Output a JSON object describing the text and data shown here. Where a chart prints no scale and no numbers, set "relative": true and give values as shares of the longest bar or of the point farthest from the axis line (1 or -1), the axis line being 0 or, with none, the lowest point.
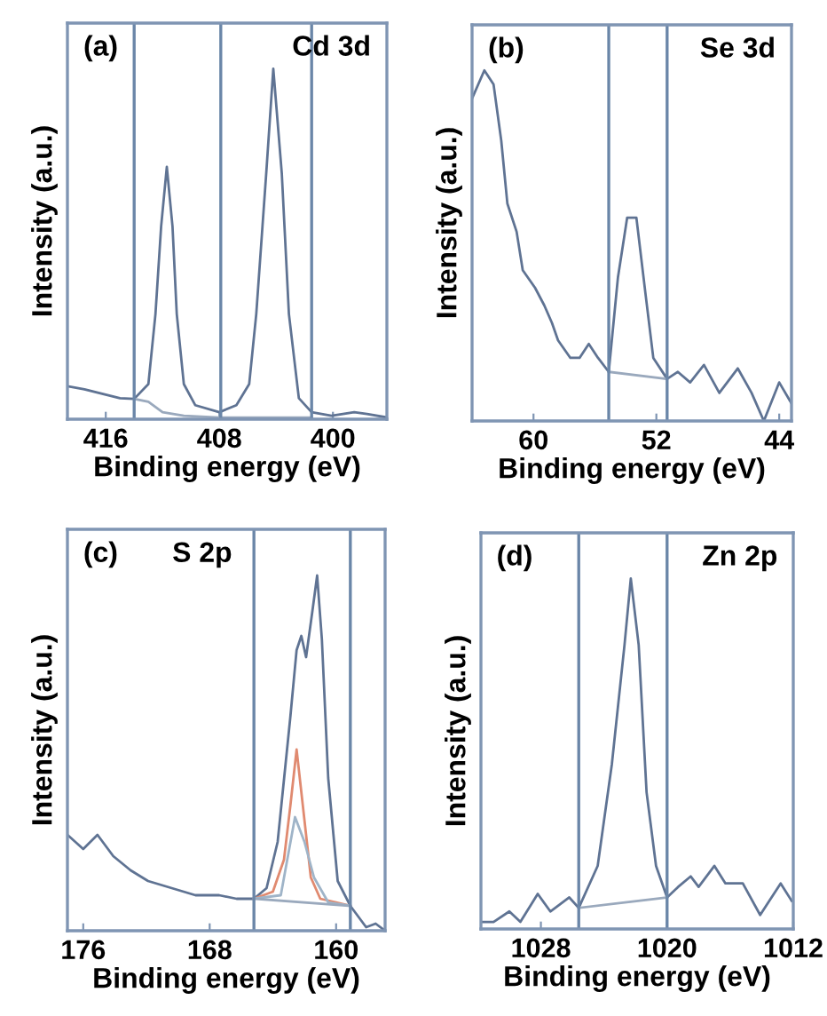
{
  "chart_data": [
    {
      "type": "line",
      "relative": true,
      "xlabel": "Binding energy (eV)",
      "ylabel": "Intensity (a.u.)",
      "annotations": [
        "(a)",
        "Cd 3d"
      ],
      "xlim": [
        418.7,
        396.2
      ],
      "xticks": [
        416,
        408,
        400
      ],
      "tick_labels": "x",
      "grid": false,
      "legend": false,
      "series": [
        {
          "color": "#5f7393",
          "x": [
            418.7,
            417.5,
            416,
            415,
            414,
            413.0,
            412.5,
            412.1,
            411.7,
            411.3,
            411.0,
            410.5,
            409.7,
            408,
            406.8,
            405.9,
            405.4,
            404.7,
            404.2,
            403.6,
            403.1,
            402.4,
            401.5,
            400.1,
            398.5,
            397.6,
            396.2
          ],
          "values": [
            0.094,
            0.085,
            0.07,
            0.06,
            0.058,
            0.1,
            0.3,
            0.55,
            0.72,
            0.55,
            0.3,
            0.1,
            0.04,
            0.02,
            0.04,
            0.1,
            0.3,
            0.7,
            1.0,
            0.7,
            0.3,
            0.06,
            0.02,
            0.01,
            0.02,
            0.015,
            0.005
          ]
        },
        {
          "color": "#9aa9bd",
          "x": [
            414,
            413,
            412,
            410.5,
            408,
            405,
            401.5
          ],
          "values": [
            0.058,
            0.05,
            0.02,
            0.01,
            0.005,
            0.005,
            0.005
          ]
        }
      ],
      "ref_lines": [
        {
          "axis": "x",
          "value": 414.0,
          "color": "#6a86a8"
        },
        {
          "axis": "x",
          "value": 407.9,
          "color": "#6a86a8"
        },
        {
          "axis": "x",
          "value": 401.5,
          "color": "#6a86a8"
        }
      ]
    },
    {
      "type": "line",
      "relative": true,
      "xlabel": "Binding energy (eV)",
      "ylabel": "Intensity (a.u.)",
      "annotations": [
        "(b)",
        "Se 3d"
      ],
      "xlim": [
        64.0,
        43.2
      ],
      "xticks": [
        60,
        52,
        44
      ],
      "tick_labels": "x",
      "grid": false,
      "legend": false,
      "series": [
        {
          "color": "#5f7393",
          "x": [
            64.0,
            63.2,
            62.6,
            62.1,
            61.7,
            61.1,
            60.7,
            59.9,
            59.3,
            58.8,
            58.4,
            57.6,
            57.0,
            56.4,
            55.8,
            55.1,
            54.5,
            53.9,
            53.3,
            52.7,
            52.2,
            51.3,
            50.6,
            49.8,
            48.9,
            47.9,
            46.7,
            45.8,
            45.0,
            44.0,
            43.2
          ],
          "values": [
            0.92,
            1.0,
            0.96,
            0.8,
            0.62,
            0.54,
            0.43,
            0.38,
            0.33,
            0.28,
            0.23,
            0.18,
            0.18,
            0.22,
            0.18,
            0.14,
            0.41,
            0.58,
            0.58,
            0.36,
            0.18,
            0.12,
            0.14,
            0.11,
            0.16,
            0.08,
            0.15,
            0.08,
            0.0,
            0.11,
            0.05
          ]
        },
        {
          "color": "#9aa9bd",
          "x": [
            55.1,
            51.3
          ],
          "values": [
            0.14,
            0.12
          ]
        }
      ],
      "ref_lines": [
        {
          "axis": "x",
          "value": 55.1,
          "color": "#6a86a8"
        },
        {
          "axis": "x",
          "value": 51.3,
          "color": "#6a86a8"
        }
      ]
    },
    {
      "type": "line",
      "relative": true,
      "xlabel": "Binding energy (eV)",
      "ylabel": "Intensity (a.u.)",
      "annotations": [
        "(c)",
        "S 2p"
      ],
      "xlim": [
        177.0,
        156.9
      ],
      "xticks": [
        176,
        168,
        160
      ],
      "tick_labels": "x",
      "grid": false,
      "legend": false,
      "series": [
        {
          "color": "#5f7393",
          "x": [
            177.0,
            176,
            175.1,
            174.1,
            173,
            171.9,
            170.4,
            168.9,
            167.4,
            166.3,
            165.2,
            164.4,
            163.7,
            162.9,
            162.5,
            162.2,
            161.9,
            161.5,
            161.2,
            160.9,
            160.5,
            159.9,
            159.1,
            158.6,
            158.1,
            157.5,
            156.9
          ],
          "values": [
            0.27,
            0.23,
            0.27,
            0.21,
            0.17,
            0.14,
            0.12,
            0.1,
            0.1,
            0.09,
            0.09,
            0.12,
            0.25,
            0.6,
            0.79,
            0.83,
            0.77,
            0.9,
            1.0,
            0.82,
            0.43,
            0.14,
            0.07,
            0.04,
            0.01,
            0.02,
            0.0
          ]
        },
        {
          "color": "#e08a70",
          "x": [
            165.2,
            164,
            163.3,
            162.9,
            162.5,
            162.1,
            161.6,
            161,
            160,
            159.1
          ],
          "values": [
            0.09,
            0.11,
            0.2,
            0.35,
            0.51,
            0.35,
            0.15,
            0.09,
            0.08,
            0.07
          ]
        },
        {
          "color": "#9fb4c8",
          "x": [
            165.2,
            163.5,
            162.6,
            162,
            161.4,
            160.5,
            159.1
          ],
          "values": [
            0.09,
            0.1,
            0.32,
            0.25,
            0.15,
            0.08,
            0.07
          ]
        },
        {
          "color": "#9aa9bd",
          "x": [
            165.2,
            159.1
          ],
          "values": [
            0.09,
            0.07
          ]
        }
      ],
      "ref_lines": [
        {
          "axis": "x",
          "value": 165.2,
          "color": "#6a86a8"
        },
        {
          "axis": "x",
          "value": 159.1,
          "color": "#6a86a8"
        }
      ]
    },
    {
      "type": "line",
      "relative": true,
      "xlabel": "Binding energy (eV)",
      "ylabel": "Intensity (a.u.)",
      "annotations": [
        "(d)",
        "Zn 2p"
      ],
      "xlim": [
        1031.8,
        1012.0
      ],
      "xticks": [
        1028,
        1020,
        1012
      ],
      "tick_labels": "x",
      "grid": false,
      "legend": false,
      "series": [
        {
          "color": "#5f7393",
          "x": [
            1031.8,
            1031.0,
            1030.0,
            1029.3,
            1028.2,
            1027.4,
            1026.2,
            1025.6,
            1024.4,
            1023.5,
            1022.7,
            1022.3,
            1021.8,
            1021.3,
            1020.7,
            1020,
            1019.3,
            1018.5,
            1018.0,
            1017.0,
            1016.3,
            1015.2,
            1014.1,
            1012.8,
            1012.1
          ],
          "values": [
            0.02,
            0.02,
            0.05,
            0.02,
            0.1,
            0.05,
            0.09,
            0.06,
            0.18,
            0.47,
            0.81,
            1.0,
            0.81,
            0.39,
            0.18,
            0.09,
            0.12,
            0.15,
            0.12,
            0.18,
            0.13,
            0.13,
            0.04,
            0.13,
            0.08
          ]
        },
        {
          "color": "#9aa9bd",
          "x": [
            1025.6,
            1020
          ],
          "values": [
            0.06,
            0.09
          ]
        }
      ],
      "ref_lines": [
        {
          "axis": "x",
          "value": 1025.6,
          "color": "#6a86a8"
        },
        {
          "axis": "x",
          "value": 1020,
          "color": "#6a86a8"
        }
      ]
    }
  ]
}
